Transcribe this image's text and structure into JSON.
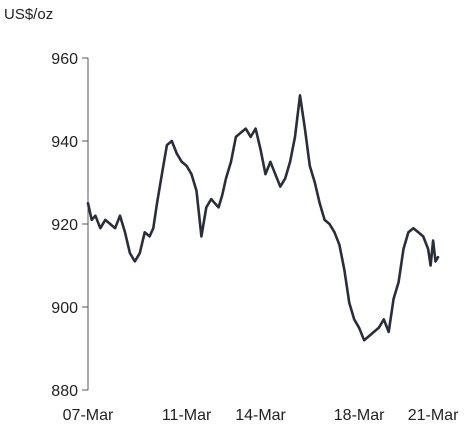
{
  "chart_data": {
    "type": "line",
    "title": "",
    "unit_label": "US$/oz",
    "xlabel": "",
    "ylabel": "",
    "ylim": [
      880,
      960
    ],
    "y_ticks": [
      880,
      900,
      920,
      940,
      960
    ],
    "x_tick_labels": [
      "07-Mar",
      "11-Mar",
      "14-Mar",
      "18-Mar",
      "21-Mar"
    ],
    "x_tick_positions": [
      0,
      4,
      7,
      11,
      14
    ],
    "grid": false,
    "legend": "none",
    "line_color": "#2b2d3a",
    "series": [
      {
        "x": [
          0.0,
          0.15,
          0.3,
          0.5,
          0.7,
          0.9,
          1.1,
          1.3,
          1.5,
          1.7,
          1.9,
          2.1,
          2.3,
          2.5,
          2.65,
          2.8,
          3.0,
          3.2,
          3.4,
          3.6,
          3.8,
          4.0,
          4.2,
          4.4,
          4.6,
          4.8,
          5.0,
          5.15,
          5.3,
          5.45,
          5.6,
          5.8,
          6.0,
          6.2,
          6.4,
          6.6,
          6.8,
          7.0,
          7.2,
          7.4,
          7.6,
          7.8,
          8.0,
          8.2,
          8.4,
          8.6,
          8.8,
          9.0,
          9.2,
          9.4,
          9.6,
          9.8,
          10.0,
          10.2,
          10.4,
          10.6,
          10.8,
          11.0,
          11.2,
          11.4,
          11.6,
          11.8,
          12.0,
          12.2,
          12.4,
          12.6,
          12.8,
          13.0,
          13.2,
          13.4,
          13.6,
          13.8,
          13.9,
          14.0,
          14.1,
          14.2
        ],
        "values": [
          925,
          921,
          922,
          919,
          921,
          920,
          919,
          922,
          918,
          913,
          911,
          913,
          918,
          917,
          919,
          925,
          932,
          939,
          940,
          937,
          935,
          934,
          932,
          928,
          917,
          924,
          926,
          925,
          924,
          927,
          931,
          935,
          941,
          942,
          943,
          941,
          943,
          938,
          932,
          935,
          932,
          929,
          931,
          935,
          941,
          951,
          943,
          934,
          930,
          925,
          921,
          920,
          918,
          915,
          909,
          901,
          897,
          895,
          892,
          893,
          894,
          895,
          897,
          894,
          902,
          906,
          914,
          918,
          919,
          918,
          917,
          914,
          910,
          916,
          911,
          912
        ]
      }
    ]
  }
}
